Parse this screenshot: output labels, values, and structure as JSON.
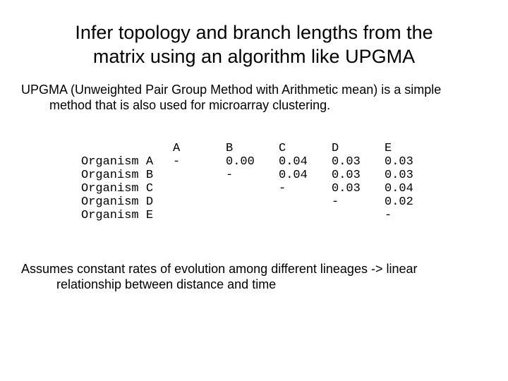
{
  "title_line1": "Infer topology and branch lengths from the",
  "title_line2": "matrix using an algorithm like UPGMA",
  "intro_line1": "UPGMA (Unweighted Pair Group Method with Arithmetic mean) is a simple",
  "intro_line2": "method that is also used for microarray clustering.",
  "matrix": {
    "col_headers": [
      "A",
      "B",
      "C",
      "D",
      "E"
    ],
    "row_labels": [
      "Organism A",
      "Organism B",
      "Organism C",
      "Organism D",
      "Organism E"
    ],
    "cells": [
      [
        "-",
        "0.00",
        "0.04",
        "0.03",
        "0.03"
      ],
      [
        "",
        "-",
        "0.04",
        "0.03",
        "0.03"
      ],
      [
        "",
        "",
        "-",
        "0.03",
        "0.04"
      ],
      [
        "",
        "",
        "",
        "-",
        "0.02"
      ],
      [
        "",
        "",
        "",
        "",
        "-"
      ]
    ]
  },
  "footer_line1": "Assumes constant rates of evolution among different lineages -> linear",
  "footer_line2": "relationship between distance and time"
}
